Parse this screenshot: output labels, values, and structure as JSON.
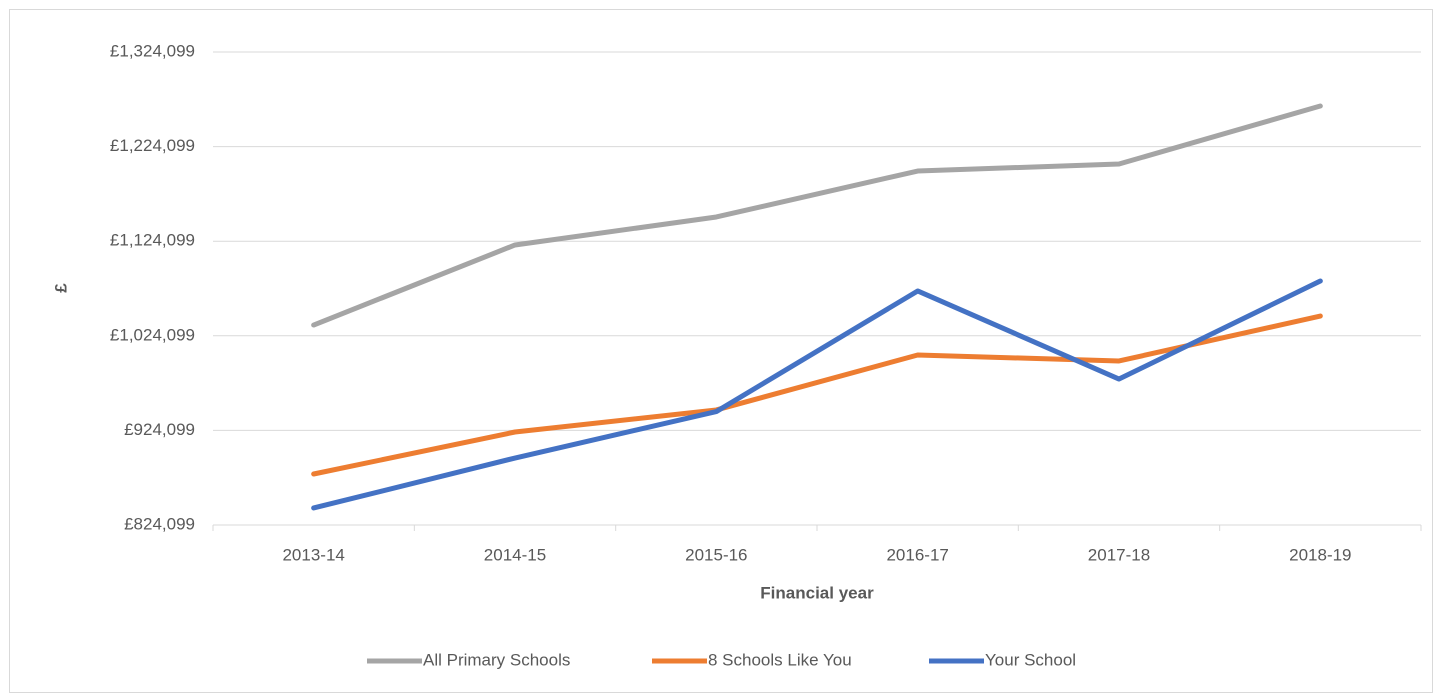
{
  "chart_data": {
    "type": "line",
    "y_label": "£",
    "x_label": "Financial year",
    "categories": [
      "2013-14",
      "2014-15",
      "2015-16",
      "2016-17",
      "2017-18",
      "2018-19"
    ],
    "series": [
      {
        "name": "All Primary Schools",
        "color": "#a5a5a5",
        "values": [
          1035500,
          1120100,
          1149700,
          1198300,
          1205700,
          1267000
        ]
      },
      {
        "name": "8 Schools Like You",
        "color": "#ed7d31",
        "values": [
          878000,
          922400,
          945700,
          1003800,
          997500,
          1045000
        ]
      },
      {
        "name": "Your School",
        "color": "#4472c4",
        "values": [
          842100,
          894900,
          944000,
          1071500,
          978400,
          1082000
        ]
      }
    ],
    "ylim": [
      824099,
      1324099
    ],
    "yticks": [
      {
        "value": 824099,
        "label": "£824,099"
      },
      {
        "value": 924099,
        "label": "£924,099"
      },
      {
        "value": 1024099,
        "label": "£1,024,099"
      },
      {
        "value": 1124099,
        "label": "£1,124,099"
      },
      {
        "value": 1224099,
        "label": "£1,224,099"
      },
      {
        "value": 1324099,
        "label": "£1,324,099"
      }
    ],
    "grid": true,
    "legend": "bottom"
  }
}
